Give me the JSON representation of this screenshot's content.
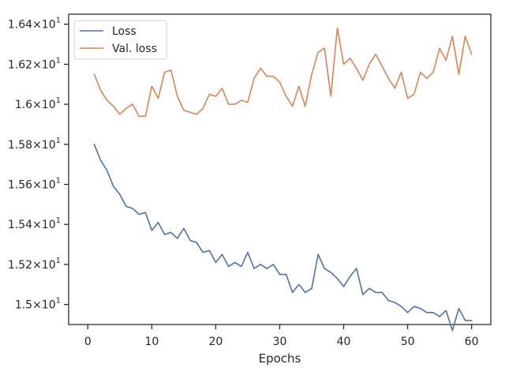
{
  "chart_data": {
    "type": "line",
    "title": "",
    "xlabel": "Epochs",
    "ylabel": "",
    "xlim": [
      -3.0,
      63.0
    ],
    "ylim": [
      14.9,
      16.45
    ],
    "x_ticks": [
      0,
      10,
      20,
      30,
      40,
      50,
      60
    ],
    "y_ticks": [
      {
        "value": 15.0,
        "base": "1.5",
        "exp": "1"
      },
      {
        "value": 15.2,
        "base": "1.52",
        "exp": "1"
      },
      {
        "value": 15.4,
        "base": "1.54",
        "exp": "1"
      },
      {
        "value": 15.6,
        "base": "1.56",
        "exp": "1"
      },
      {
        "value": 15.8,
        "base": "1.58",
        "exp": "1"
      },
      {
        "value": 16.0,
        "base": "1.6",
        "exp": "1"
      },
      {
        "value": 16.2,
        "base": "1.62",
        "exp": "1"
      },
      {
        "value": 16.4,
        "base": "1.64",
        "exp": "1"
      }
    ],
    "grid": false,
    "legend_position": "top-left",
    "x": [
      1,
      2,
      3,
      4,
      5,
      6,
      7,
      8,
      9,
      10,
      11,
      12,
      13,
      14,
      15,
      16,
      17,
      18,
      19,
      20,
      21,
      22,
      23,
      24,
      25,
      26,
      27,
      28,
      29,
      30,
      31,
      32,
      33,
      34,
      35,
      36,
      37,
      38,
      39,
      40,
      41,
      42,
      43,
      44,
      45,
      46,
      47,
      48,
      49,
      50,
      51,
      52,
      53,
      54,
      55,
      56,
      57,
      58,
      59,
      60
    ],
    "series": [
      {
        "name": "Loss",
        "color": "#4c72b0",
        "values": [
          15.8,
          15.72,
          15.67,
          15.59,
          15.55,
          15.49,
          15.48,
          15.45,
          15.46,
          15.37,
          15.41,
          15.35,
          15.36,
          15.33,
          15.38,
          15.32,
          15.31,
          15.26,
          15.27,
          15.21,
          15.25,
          15.19,
          15.21,
          15.19,
          15.26,
          15.18,
          15.2,
          15.18,
          15.2,
          15.15,
          15.15,
          15.06,
          15.1,
          15.06,
          15.08,
          15.25,
          15.18,
          15.16,
          15.13,
          15.09,
          15.14,
          15.18,
          15.05,
          15.08,
          15.06,
          15.06,
          15.02,
          15.01,
          14.99,
          14.96,
          14.99,
          14.98,
          14.96,
          14.96,
          14.94,
          14.97,
          14.87,
          14.98,
          14.92,
          14.92
        ]
      },
      {
        "name": "Val. loss",
        "color": "#dd8452",
        "values": [
          16.15,
          16.07,
          16.02,
          15.99,
          15.95,
          15.98,
          16.0,
          15.94,
          15.94,
          16.09,
          16.03,
          16.16,
          16.17,
          16.04,
          15.97,
          15.96,
          15.95,
          15.98,
          16.05,
          16.04,
          16.08,
          16.0,
          16.0,
          16.02,
          16.01,
          16.13,
          16.18,
          16.14,
          16.14,
          16.11,
          16.04,
          15.99,
          16.09,
          15.99,
          16.15,
          16.26,
          16.28,
          16.04,
          16.38,
          16.2,
          16.23,
          16.18,
          16.12,
          16.2,
          16.25,
          16.19,
          16.13,
          16.08,
          16.16,
          16.03,
          16.05,
          16.16,
          16.13,
          16.16,
          16.28,
          16.22,
          16.34,
          16.15,
          16.34,
          16.25
        ]
      }
    ]
  }
}
